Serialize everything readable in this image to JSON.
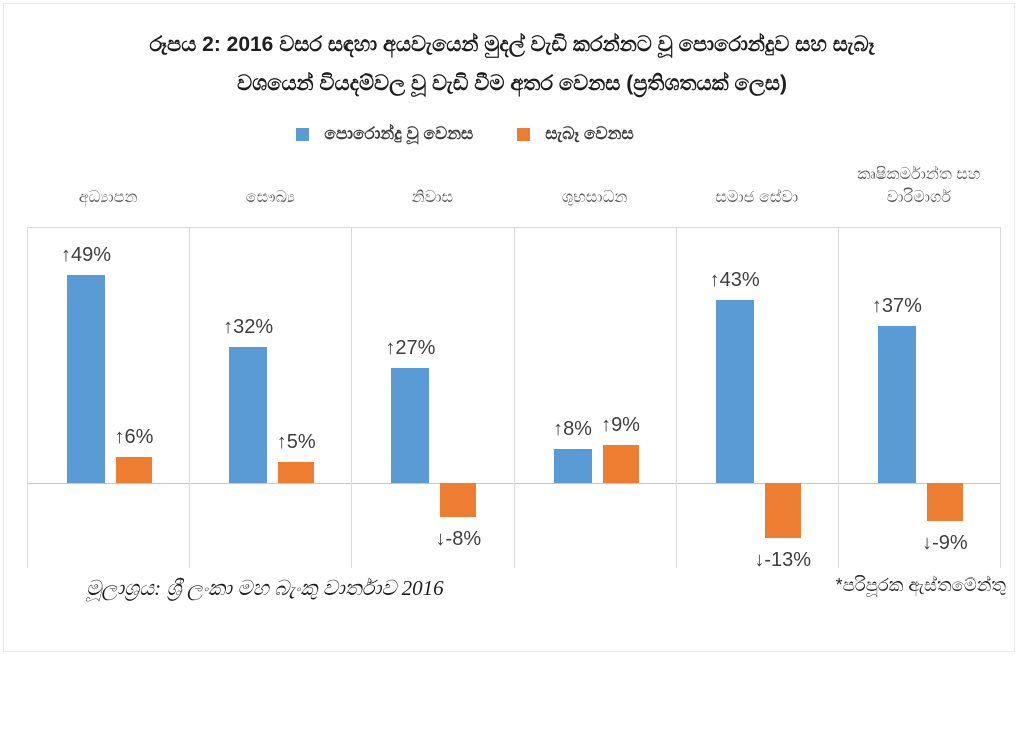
{
  "figure": {
    "title_line1": "රූපය 2: 2016 වසර සඳහා අයවැයෙන් මුදල් වැඩි කරන්නට වූ පොරොන්දුව සහ සැබෑ",
    "title_line2": "වශයෙන් වියදම්වල වූ වැඩි වීම අතර වෙනස (ප්‍රතිශතයක් ලෙස)",
    "source": "මූලාශ්‍රය: ශ්‍රී ලංකා මහ බැංකු වාර්තාව 2016",
    "footnote": "*පරිපූරක ඇස්තමේන්තු"
  },
  "colors": {
    "promised_blue": "#5B9BD5",
    "actual_orange": "#ED7D31",
    "gridline": "#d9d9d9",
    "label_text": "#3f3f3f"
  },
  "chart_data": {
    "type": "bar",
    "title": "රූපය 2: 2016 වසර සඳහා අයවැයෙන් මුදල් වැඩි කරන්නට වූ පොරොන්දුව සහ සැබෑ වශයෙන් වියදම්වල වූ වැඩි වීම අතර වෙනස (ප්‍රතිශතයක් ලෙස)",
    "categories": [
      "අධ්‍යාපන",
      "සෞඛ්‍ය",
      "නිවාස",
      "ශුභසාධන",
      "සමාජ සේවා",
      "කෘෂිකර්මාන්ත සහ වාරිමාර්ග"
    ],
    "series": [
      {
        "name": "පොරොන්දු වූ වෙනස",
        "color": "#5B9BD5",
        "values": [
          49,
          32,
          27,
          8,
          43,
          37
        ],
        "labels": [
          "↑49%",
          "↑32%",
          "↑27%",
          "↑8%",
          "↑43%",
          "↑37%"
        ]
      },
      {
        "name": "සැබෑ වෙනස",
        "color": "#ED7D31",
        "values": [
          6,
          5,
          -8,
          9,
          -13,
          -9
        ],
        "labels": [
          "↑6%",
          "↑5%",
          "↓-8%",
          "↑9%",
          "↓-13%",
          "↓-9%"
        ]
      }
    ],
    "ylabel": "",
    "xlabel": "",
    "ylim": [
      -20,
      60
    ],
    "grid": "vertical panel dividers and zero baseline only",
    "legend_position": "top-center",
    "value_label_format": "arrow + percent, negative labels below bars"
  }
}
